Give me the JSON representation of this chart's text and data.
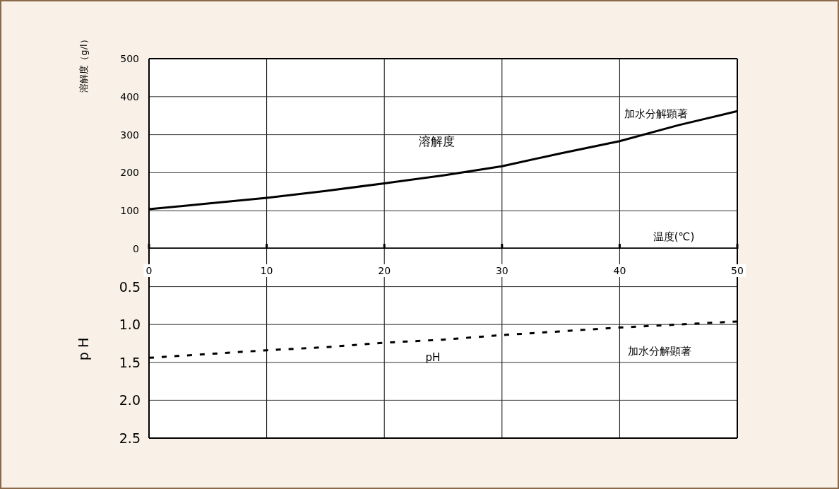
{
  "chart_data": [
    {
      "type": "line",
      "ylabel": "溶解度（g/l）",
      "xlabel": "温度(℃)",
      "x": [
        0,
        5,
        10,
        15,
        20,
        25,
        30,
        35,
        40,
        45,
        50
      ],
      "xlim": [
        0,
        50
      ],
      "ylim": [
        0,
        500
      ],
      "xticks": [
        0,
        10,
        20,
        30,
        40,
        50
      ],
      "yticks": [
        0,
        100,
        200,
        300,
        400,
        500
      ],
      "grid": true,
      "line_style": "solid",
      "series": [
        {
          "name": "溶解度",
          "color": "#000000",
          "values": [
            104,
            119,
            134,
            152,
            172,
            193,
            217,
            251,
            283,
            325,
            362
          ]
        }
      ],
      "annotations": [
        "加水分解顕著"
      ]
    },
    {
      "type": "line",
      "ylabel": "p H",
      "x": [
        0,
        5,
        10,
        15,
        20,
        25,
        30,
        35,
        40,
        45,
        50
      ],
      "xlim": [
        0,
        50
      ],
      "ylim": [
        2.5,
        0
      ],
      "xticks": [
        0,
        10,
        20,
        30,
        40,
        50
      ],
      "yticks": [
        0.5,
        {
          "value": 1.0,
          "label": "1.0"
        },
        1.5,
        {
          "value": 2.0,
          "label": "2.0"
        },
        2.5
      ],
      "grid": true,
      "tick_labels": "y",
      "line_style": "dashed",
      "series": [
        {
          "name": "pH",
          "color": "#000000",
          "values": [
            1.44,
            1.39,
            1.34,
            1.3,
            1.24,
            1.2,
            1.14,
            1.09,
            1.04,
            1.0,
            0.96
          ]
        }
      ],
      "annotations": [
        "加水分解顕著"
      ]
    }
  ]
}
